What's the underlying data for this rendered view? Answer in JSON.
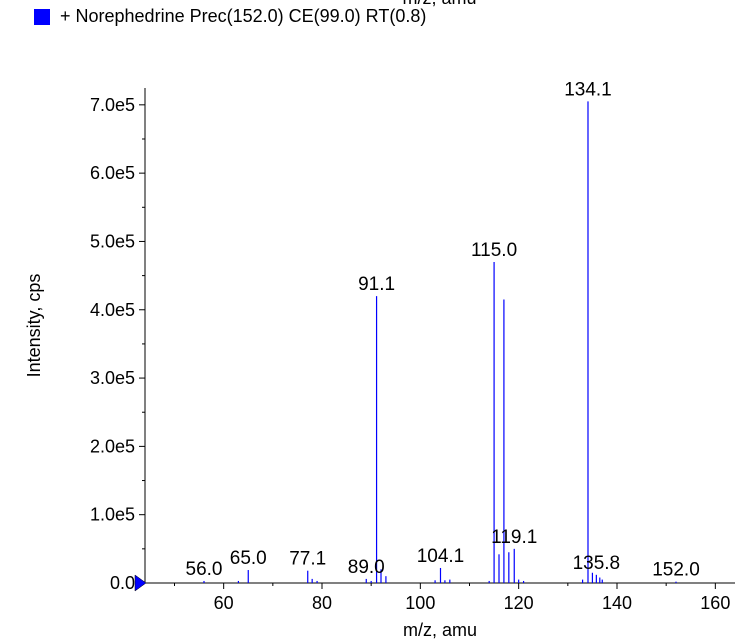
{
  "top_cut_text": "m/z, amu",
  "legend": {
    "label": "+ Norephedrine Prec(152.0) CE(99.0) RT(0.8)",
    "color": "#0000ff"
  },
  "chart_data": {
    "type": "bar",
    "xlabel": "m/z, amu",
    "ylabel": "Intensity, cps",
    "xlim": [
      44,
      164
    ],
    "ylim": [
      0,
      710000
    ],
    "x_ticks": [
      60,
      80,
      100,
      120,
      140,
      160
    ],
    "x_tick_labels": [
      "60",
      "80",
      "100",
      "120",
      "140",
      "160"
    ],
    "y_ticks": [
      0,
      100000,
      200000,
      300000,
      400000,
      500000,
      600000,
      700000
    ],
    "y_tick_labels": [
      "0.0",
      "1.0e5",
      "2.0e5",
      "3.0e5",
      "4.0e5",
      "5.0e5",
      "6.0e5",
      "7.0e5"
    ],
    "series": [
      {
        "color": "#0000ff",
        "peaks": [
          {
            "x": 56.0,
            "y": 3000
          },
          {
            "x": 63.0,
            "y": 3000
          },
          {
            "x": 65.0,
            "y": 19000
          },
          {
            "x": 77.1,
            "y": 18000
          },
          {
            "x": 78.0,
            "y": 6000
          },
          {
            "x": 79.0,
            "y": 3000
          },
          {
            "x": 89.0,
            "y": 6000
          },
          {
            "x": 90.0,
            "y": 3000
          },
          {
            "x": 91.1,
            "y": 420000
          },
          {
            "x": 92.0,
            "y": 20000
          },
          {
            "x": 93.0,
            "y": 10000
          },
          {
            "x": 103.0,
            "y": 4000
          },
          {
            "x": 104.1,
            "y": 22000
          },
          {
            "x": 105.0,
            "y": 4000
          },
          {
            "x": 106.0,
            "y": 5000
          },
          {
            "x": 114.0,
            "y": 3000
          },
          {
            "x": 115.0,
            "y": 470000
          },
          {
            "x": 116.0,
            "y": 42000
          },
          {
            "x": 117.0,
            "y": 415000
          },
          {
            "x": 118.0,
            "y": 45000
          },
          {
            "x": 119.1,
            "y": 50000
          },
          {
            "x": 120.0,
            "y": 5000
          },
          {
            "x": 121.0,
            "y": 3000
          },
          {
            "x": 133.0,
            "y": 5000
          },
          {
            "x": 134.1,
            "y": 705000
          },
          {
            "x": 135.0,
            "y": 15000
          },
          {
            "x": 135.8,
            "y": 12000
          },
          {
            "x": 136.5,
            "y": 8000
          },
          {
            "x": 137.0,
            "y": 5000
          },
          {
            "x": 152.0,
            "y": 2000
          }
        ]
      }
    ],
    "peak_labels": [
      {
        "text": "56.0",
        "x": 56.0,
        "y": 3000
      },
      {
        "text": "65.0",
        "x": 65.0,
        "y": 19000
      },
      {
        "text": "77.1",
        "x": 77.1,
        "y": 18000
      },
      {
        "text": "89.0",
        "x": 89.0,
        "y": 6000
      },
      {
        "text": "91.1",
        "x": 91.1,
        "y": 420000
      },
      {
        "text": "104.1",
        "x": 104.1,
        "y": 22000
      },
      {
        "text": "115.0",
        "x": 115.0,
        "y": 470000
      },
      {
        "text": "119.1",
        "x": 119.1,
        "y": 50000
      },
      {
        "text": "134.1",
        "x": 134.1,
        "y": 705000
      },
      {
        "text": "135.8",
        "x": 135.8,
        "y": 12000
      },
      {
        "text": "152.0",
        "x": 152.0,
        "y": 2000
      }
    ]
  }
}
